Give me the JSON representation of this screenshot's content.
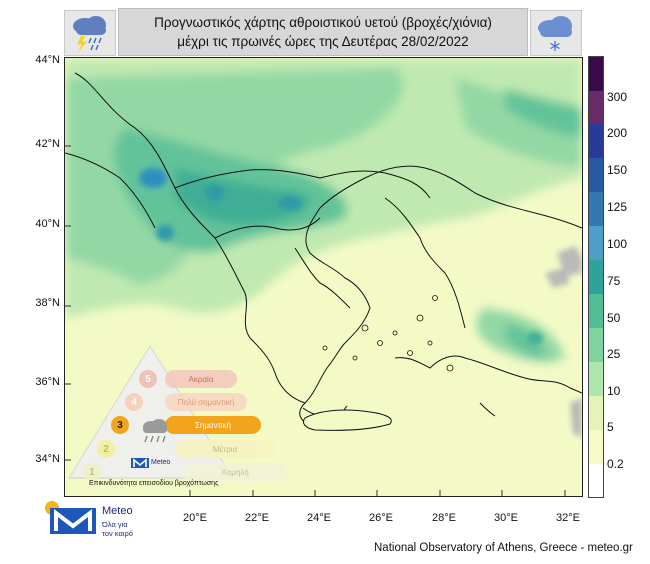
{
  "header": {
    "title_line1": "Προγνωστικός χάρτης αθροιστικού υετού (βροχές/χιόνια)",
    "title_line2": "μέχρι τις πρωινές ώρες της Δευτέρας 28/02/2022",
    "left_icon": "thunderstorm-cloud-icon",
    "right_icon": "snow-cloud-icon"
  },
  "map": {
    "lat_labels": [
      "44°N",
      "42°N",
      "40°N",
      "38°N",
      "36°N",
      "34°N"
    ],
    "lon_labels": [
      "20°E",
      "22°E",
      "24°E",
      "26°E",
      "28°E",
      "30°E",
      "32°E"
    ]
  },
  "legend": {
    "values": [
      "300",
      "200",
      "150",
      "125",
      "100",
      "75",
      "50",
      "25",
      "10",
      "5",
      "0.2"
    ],
    "colors": [
      "#3a0a4a",
      "#6a2a6a",
      "#283a9a",
      "#2a58a0",
      "#3478b0",
      "#4e9ec8",
      "#2fa29a",
      "#50bd94",
      "#7fd3a0",
      "#aee6ad",
      "#e4f4b7",
      "#f5fac8",
      "#ffffff"
    ]
  },
  "danger_scale": {
    "levels": [
      {
        "number": "5",
        "label": "Ακραία",
        "color": "#e27b6a"
      },
      {
        "number": "4",
        "label": "Πολύ σημαντική",
        "color": "#f0a77a"
      },
      {
        "number": "3",
        "label": "Σημαντική",
        "color": "#f2a51c"
      },
      {
        "number": "2",
        "label": "Μέτρια",
        "color": "#f3ee9b"
      },
      {
        "number": "1",
        "label": "Χαμηλή",
        "color": "#edf1c6"
      }
    ],
    "caption": "Επικινδυνότητα επεισοδίου βροχόπτωσης",
    "brand": "Meteo"
  },
  "branding": {
    "logo_name": "Meteo",
    "logo_tagline_1": "Όλα για",
    "logo_tagline_2": "τον καιρό"
  },
  "footer": {
    "credit": "National Observatory of Athens, Greece - meteo.gr"
  }
}
